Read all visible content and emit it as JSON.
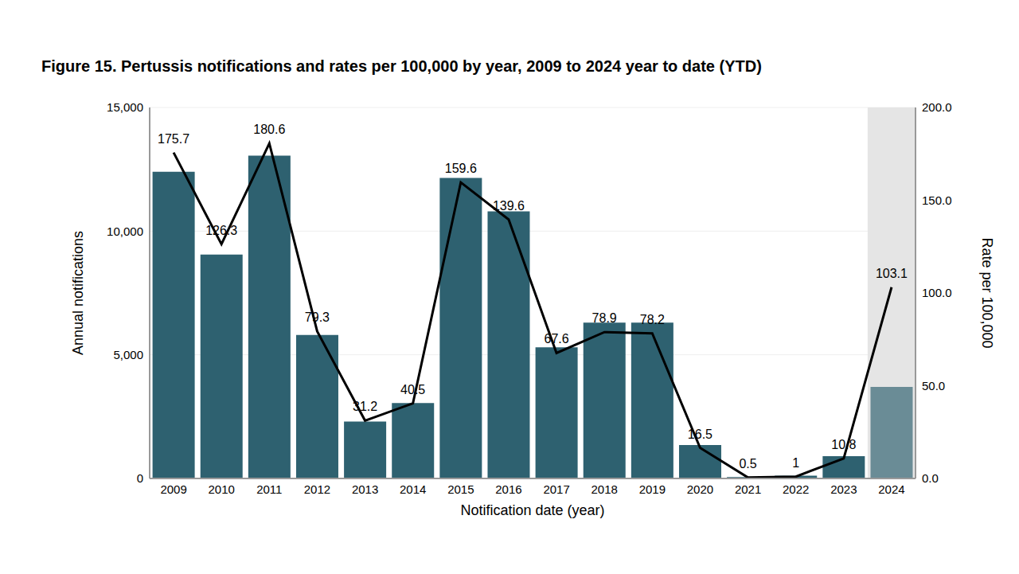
{
  "chart_data": {
    "type": "bar",
    "title": "Figure 15. Pertussis notifications and rates per 100,000 by year, 2009 to 2024 year to date (YTD)",
    "x_label": "Notification date (year)",
    "y_label": "Annual notifications",
    "y2_label": "Rate per 100,000",
    "categories": [
      "2009",
      "2010",
      "2011",
      "2012",
      "2013",
      "2014",
      "2015",
      "2016",
      "2017",
      "2018",
      "2019",
      "2020",
      "2021",
      "2022",
      "2023",
      "2024"
    ],
    "series": [
      {
        "type": "bar",
        "colors": [
          "#2e6170",
          "#2e6170",
          "#2e6170",
          "#2e6170",
          "#2e6170",
          "#2e6170",
          "#2e6170",
          "#2e6170",
          "#2e6170",
          "#2e6170",
          "#2e6170",
          "#2e6170",
          "#2e6170",
          "#2e6170",
          "#2e6170",
          "#6a8c96"
        ],
        "values": [
          12400,
          9050,
          13050,
          5800,
          2300,
          3050,
          12150,
          10800,
          5300,
          6300,
          6300,
          1350,
          60,
          110,
          900,
          3700
        ]
      },
      {
        "type": "line",
        "axis": "y2",
        "color": "#000000",
        "data_labels": true,
        "values": [
          175.7,
          126.3,
          180.6,
          79.3,
          31.2,
          40.5,
          159.6,
          139.6,
          67.6,
          78.9,
          78.2,
          16.5,
          0.5,
          1,
          10.8,
          103.1
        ]
      }
    ],
    "ylim": [
      0,
      15000
    ],
    "yticks": [
      0,
      {
        "value": 5000,
        "label": "5,000"
      },
      {
        "value": 10000,
        "label": "10,000"
      },
      {
        "value": 15000,
        "label": "15,000"
      }
    ],
    "y2lim": [
      0,
      200
    ],
    "y2ticks": [
      {
        "value": 0,
        "label": "0.0"
      },
      {
        "value": 50,
        "label": "50.0"
      },
      {
        "value": 100,
        "label": "100.0"
      },
      {
        "value": 150,
        "label": "150.0"
      },
      {
        "value": 200,
        "label": "200.0"
      }
    ],
    "grid": true
  }
}
